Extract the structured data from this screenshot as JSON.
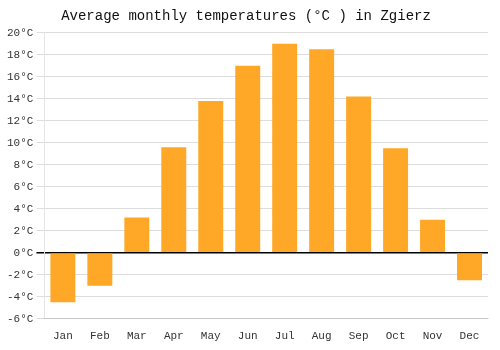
{
  "chart_data": {
    "type": "bar",
    "title": "Average monthly temperatures (°C ) in Zgierz",
    "categories": [
      "Jan",
      "Feb",
      "Mar",
      "Apr",
      "May",
      "Jun",
      "Jul",
      "Aug",
      "Sep",
      "Oct",
      "Nov",
      "Dec"
    ],
    "values": [
      -4.5,
      -3.0,
      3.2,
      9.6,
      13.8,
      17.0,
      19.0,
      18.5,
      14.2,
      9.5,
      3.0,
      -2.5
    ],
    "color": "#FFA726",
    "ylim": [
      -6,
      20
    ],
    "yticks": [
      {
        "value": -6,
        "label": "-6°C"
      },
      {
        "value": -4,
        "label": "-4°C"
      },
      {
        "value": -2,
        "label": "-2°C"
      },
      {
        "value": 0,
        "label": "0°C"
      },
      {
        "value": 2,
        "label": "2°C"
      },
      {
        "value": 4,
        "label": "4°C"
      },
      {
        "value": 6,
        "label": "6°C"
      },
      {
        "value": 8,
        "label": "8°C"
      },
      {
        "value": 10,
        "label": "10°C"
      },
      {
        "value": 12,
        "label": "12°C"
      },
      {
        "value": 14,
        "label": "14°C"
      },
      {
        "value": 16,
        "label": "16°C"
      },
      {
        "value": 18,
        "label": "18°C"
      },
      {
        "value": 20,
        "label": "20°C"
      }
    ],
    "grid": true
  }
}
